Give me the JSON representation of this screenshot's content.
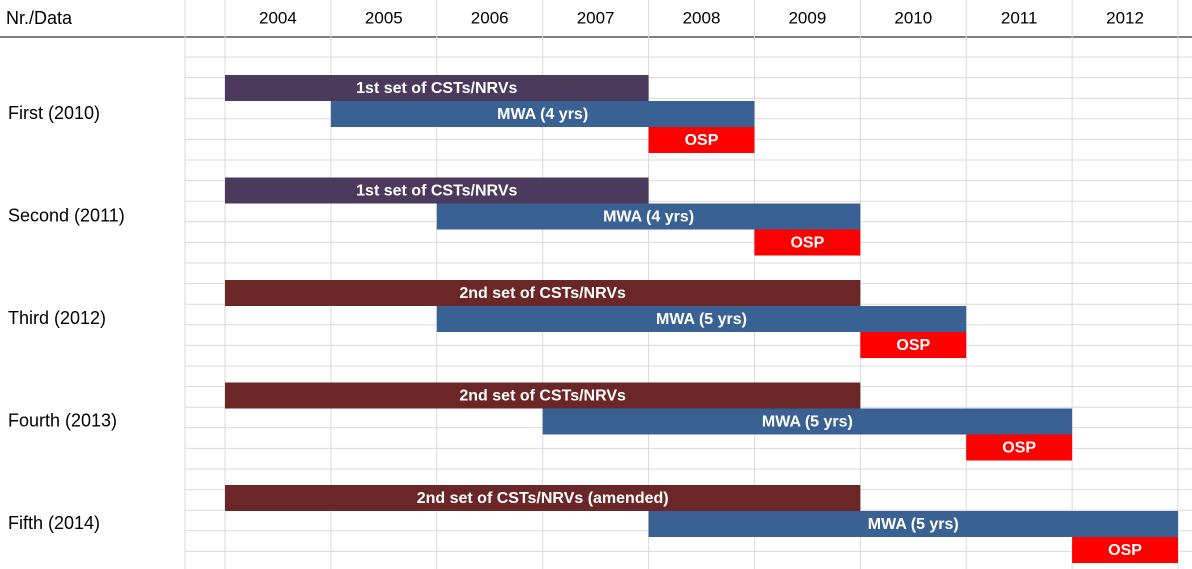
{
  "chart_data": {
    "type": "gantt",
    "header": "Nr./Data",
    "categories": [
      2004,
      2005,
      2006,
      2007,
      2008,
      2009,
      2010,
      2011,
      2012
    ],
    "xlim": [
      2004,
      2013
    ],
    "groups": [
      {
        "name": "First (2010)",
        "tasks": [
          {
            "name": "1st set of CSTs/NRVs",
            "start": 2004,
            "end": 2008,
            "color": "#4b3a5c"
          },
          {
            "name": "MWA (4 yrs)",
            "start": 2005,
            "end": 2009,
            "color": "#3a6194"
          },
          {
            "name": "OSP",
            "start": 2008,
            "end": 2009,
            "color": "#ff0000"
          }
        ]
      },
      {
        "name": "Second (2011)",
        "tasks": [
          {
            "name": "1st set of CSTs/NRVs",
            "start": 2004,
            "end": 2008,
            "color": "#4b3a5c"
          },
          {
            "name": "MWA (4 yrs)",
            "start": 2006,
            "end": 2010,
            "color": "#3a6194"
          },
          {
            "name": "OSP",
            "start": 2009,
            "end": 2010,
            "color": "#ff0000"
          }
        ]
      },
      {
        "name": "Third (2012)",
        "tasks": [
          {
            "name": "2nd set of CSTs/NRVs",
            "start": 2004,
            "end": 2010,
            "color": "#6b2727"
          },
          {
            "name": "MWA (5 yrs)",
            "start": 2006,
            "end": 2011,
            "color": "#3a6194"
          },
          {
            "name": "OSP",
            "start": 2010,
            "end": 2011,
            "color": "#ff0000"
          }
        ]
      },
      {
        "name": "Fourth (2013)",
        "tasks": [
          {
            "name": "2nd set of CSTs/NRVs",
            "start": 2004,
            "end": 2010,
            "color": "#6b2727"
          },
          {
            "name": "MWA (5 yrs)",
            "start": 2007,
            "end": 2012,
            "color": "#3a6194"
          },
          {
            "name": "OSP",
            "start": 2011,
            "end": 2012,
            "color": "#ff0000"
          }
        ]
      },
      {
        "name": "Fifth (2014)",
        "tasks": [
          {
            "name": "2nd set of CSTs/NRVs (amended)",
            "start": 2004,
            "end": 2010,
            "color": "#6b2727"
          },
          {
            "name": "MWA (5 yrs)",
            "start": 2008,
            "end": 2013,
            "color": "#3a6194"
          },
          {
            "name": "OSP",
            "start": 2012,
            "end": 2013,
            "color": "#ff0000"
          }
        ]
      }
    ]
  }
}
